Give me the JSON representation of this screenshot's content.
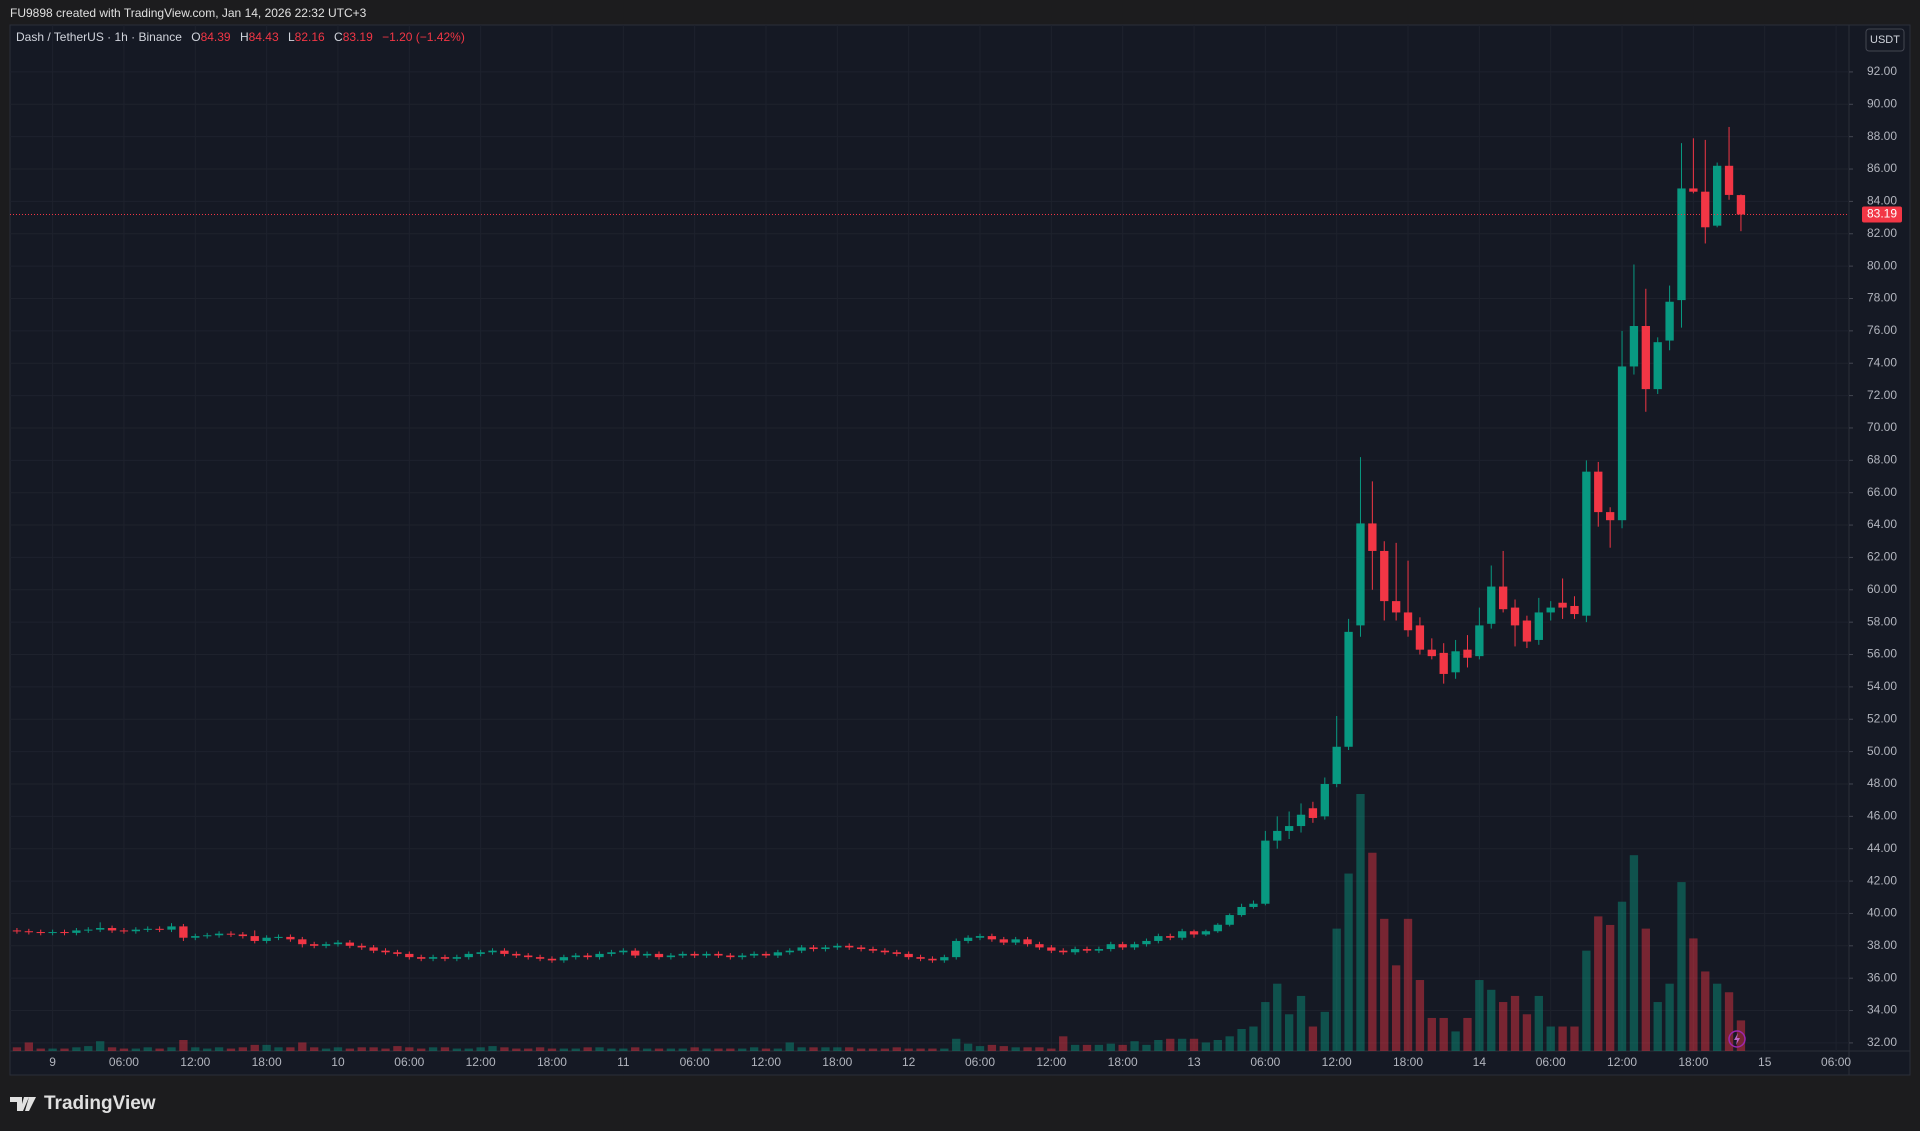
{
  "attribution": "FU9898 created with TradingView.com, Jan 14, 2026 22:32 UTC+3",
  "brand": "TradingView",
  "chart_data": {
    "type": "candlestick",
    "title": "Dash / TetherUS · 1h · Binance",
    "legend_labels": [
      "O",
      "H",
      "L",
      "C"
    ],
    "change": "−1.20 (−1.42%)",
    "currency": "USDT",
    "up_color": "#089981",
    "down_color": "#f23645",
    "grid": true,
    "ylim": [
      31.5,
      94.9
    ],
    "yticks": [
      {
        "value": 32,
        "label": "32.00"
      },
      {
        "value": 34,
        "label": "34.00"
      },
      {
        "value": 36,
        "label": "36.00"
      },
      {
        "value": 38,
        "label": "38.00"
      },
      {
        "value": 40,
        "label": "40.00"
      },
      {
        "value": 42,
        "label": "42.00"
      },
      {
        "value": 44,
        "label": "44.00"
      },
      {
        "value": 46,
        "label": "46.00"
      },
      {
        "value": 48,
        "label": "48.00"
      },
      {
        "value": 50,
        "label": "50.00"
      },
      {
        "value": 52,
        "label": "52.00"
      },
      {
        "value": 54,
        "label": "54.00"
      },
      {
        "value": 56,
        "label": "56.00"
      },
      {
        "value": 58,
        "label": "58.00"
      },
      {
        "value": 60,
        "label": "60.00"
      },
      {
        "value": 62,
        "label": "62.00"
      },
      {
        "value": 64,
        "label": "64.00"
      },
      {
        "value": 66,
        "label": "66.00"
      },
      {
        "value": 68,
        "label": "68.00"
      },
      {
        "value": 70,
        "label": "70.00"
      },
      {
        "value": 72,
        "label": "72.00"
      },
      {
        "value": 74,
        "label": "74.00"
      },
      {
        "value": 76,
        "label": "76.00"
      },
      {
        "value": 78,
        "label": "78.00"
      },
      {
        "value": 80,
        "label": "80.00"
      },
      {
        "value": 82,
        "label": "82.00"
      },
      {
        "value": 84,
        "label": "84.00"
      },
      {
        "value": 86,
        "label": "86.00"
      },
      {
        "value": 88,
        "label": "88.00"
      },
      {
        "value": 90,
        "label": "90.00"
      },
      {
        "value": 92,
        "label": "92.00"
      }
    ],
    "categories": [
      null,
      null,
      null,
      "9",
      null,
      null,
      null,
      null,
      null,
      "06:00",
      null,
      null,
      null,
      null,
      null,
      "12:00",
      null,
      null,
      null,
      null,
      null,
      "18:00",
      null,
      null,
      null,
      null,
      null,
      "10",
      null,
      null,
      null,
      null,
      null,
      "06:00",
      null,
      null,
      null,
      null,
      null,
      "12:00",
      null,
      null,
      null,
      null,
      null,
      "18:00",
      null,
      null,
      null,
      null,
      null,
      "11",
      null,
      null,
      null,
      null,
      null,
      "06:00",
      null,
      null,
      null,
      null,
      null,
      "12:00",
      null,
      null,
      null,
      null,
      null,
      "18:00",
      null,
      null,
      null,
      null,
      null,
      "12",
      null,
      null,
      null,
      null,
      null,
      "06:00",
      null,
      null,
      null,
      null,
      null,
      "12:00",
      null,
      null,
      null,
      null,
      null,
      "18:00",
      null,
      null,
      null,
      null,
      null,
      "13",
      null,
      null,
      null,
      null,
      null,
      "06:00",
      null,
      null,
      null,
      null,
      null,
      "12:00",
      null,
      null,
      null,
      null,
      null,
      "18:00",
      null,
      null,
      null,
      null,
      null,
      "14",
      null,
      null,
      null,
      null,
      null,
      "06:00",
      null,
      null,
      null,
      null,
      null,
      "12:00",
      null,
      null,
      null,
      null,
      null,
      "18:00",
      null,
      null,
      null,
      null,
      null,
      "15",
      null,
      null,
      null,
      null,
      null,
      "06:00"
    ],
    "open": [
      38.95,
      38.9,
      38.85,
      38.8,
      38.85,
      38.8,
      38.95,
      39.0,
      39.1,
      38.95,
      38.9,
      39.0,
      39.05,
      39.0,
      39.2,
      38.5,
      38.6,
      38.65,
      38.75,
      38.7,
      38.6,
      38.3,
      38.5,
      38.55,
      38.4,
      38.1,
      38.0,
      38.1,
      38.2,
      38.0,
      37.9,
      37.7,
      37.6,
      37.5,
      37.3,
      37.2,
      37.3,
      37.2,
      37.3,
      37.5,
      37.6,
      37.7,
      37.5,
      37.4,
      37.3,
      37.2,
      37.1,
      37.3,
      37.4,
      37.3,
      37.5,
      37.6,
      37.7,
      37.4,
      37.5,
      37.3,
      37.4,
      37.5,
      37.4,
      37.5,
      37.4,
      37.3,
      37.4,
      37.5,
      37.4,
      37.6,
      37.7,
      37.9,
      37.8,
      37.9,
      38.0,
      37.9,
      37.8,
      37.7,
      37.6,
      37.5,
      37.3,
      37.2,
      37.1,
      37.3,
      38.3,
      38.5,
      38.6,
      38.4,
      38.2,
      38.4,
      38.1,
      37.9,
      37.7,
      37.6,
      37.8,
      37.7,
      37.8,
      38.1,
      37.9,
      38.1,
      38.3,
      38.6,
      38.5,
      38.9,
      38.7,
      38.9,
      39.3,
      39.9,
      40.4,
      40.6,
      44.5,
      45.1,
      45.4,
      46.5,
      46.0,
      48.0,
      50.3,
      57.8,
      64.1,
      62.4,
      59.3,
      58.6,
      57.8,
      56.3,
      56.1,
      54.9,
      56.3,
      55.9,
      57.9,
      60.2,
      58.9,
      58.1,
      56.9,
      58.6,
      59.2,
      59.0,
      58.4,
      67.3,
      64.8,
      64.3,
      73.8,
      76.3,
      72.4,
      75.4,
      77.9,
      84.8,
      84.6,
      82.5,
      86.2,
      84.39,
      null,
      null,
      null,
      null,
      null,
      null,
      null,
      null
    ],
    "high": [
      39.1,
      39.05,
      39.0,
      39.0,
      39.0,
      39.1,
      39.15,
      39.45,
      39.25,
      39.1,
      39.15,
      39.2,
      39.2,
      39.4,
      39.35,
      38.75,
      38.8,
      38.9,
      38.9,
      38.85,
      38.95,
      38.65,
      38.7,
      38.7,
      38.55,
      38.25,
      38.25,
      38.35,
      38.35,
      38.15,
      38.05,
      37.85,
      37.75,
      37.65,
      37.45,
      37.45,
      37.45,
      37.45,
      37.65,
      37.75,
      37.85,
      37.85,
      37.65,
      37.55,
      37.45,
      37.35,
      37.45,
      37.55,
      37.55,
      37.65,
      37.75,
      37.85,
      37.85,
      37.65,
      37.65,
      37.55,
      37.65,
      37.65,
      37.65,
      37.65,
      37.55,
      37.55,
      37.65,
      37.65,
      37.75,
      37.85,
      38.05,
      38.05,
      38.05,
      38.15,
      38.15,
      38.05,
      37.95,
      37.85,
      37.75,
      37.65,
      37.45,
      37.35,
      37.45,
      38.45,
      38.65,
      38.75,
      38.75,
      38.55,
      38.55,
      38.55,
      38.25,
      38.05,
      37.85,
      37.95,
      37.95,
      37.95,
      38.25,
      38.25,
      38.25,
      38.45,
      38.75,
      38.75,
      39.05,
      39.0,
      39.0,
      39.4,
      40.0,
      40.6,
      40.8,
      45.1,
      46.0,
      46.3,
      46.8,
      46.9,
      48.4,
      52.2,
      58.2,
      68.2,
      66.7,
      63.0,
      62.9,
      61.8,
      58.3,
      57.0,
      56.7,
      56.9,
      57.2,
      58.9,
      61.5,
      62.4,
      59.4,
      58.4,
      59.5,
      59.3,
      60.7,
      59.6,
      68.0,
      67.9,
      65.1,
      76.0,
      80.1,
      78.6,
      75.6,
      78.8,
      87.6,
      87.9,
      87.8,
      86.4,
      88.6,
      84.43,
      null,
      null,
      null,
      null,
      null,
      null,
      null,
      null
    ],
    "low": [
      38.75,
      38.7,
      38.65,
      38.65,
      38.65,
      38.65,
      38.8,
      38.85,
      38.8,
      38.75,
      38.75,
      38.85,
      38.85,
      38.85,
      38.3,
      38.35,
      38.45,
      38.5,
      38.55,
      38.45,
      38.15,
      38.15,
      38.35,
      38.25,
      37.9,
      37.85,
      37.85,
      37.95,
      37.85,
      37.75,
      37.55,
      37.45,
      37.35,
      37.15,
      37.05,
      37.05,
      37.05,
      37.05,
      37.15,
      37.35,
      37.45,
      37.35,
      37.25,
      37.15,
      37.05,
      36.95,
      36.95,
      37.15,
      37.15,
      37.15,
      37.35,
      37.45,
      37.25,
      37.25,
      37.15,
      37.15,
      37.25,
      37.25,
      37.25,
      37.25,
      37.15,
      37.15,
      37.25,
      37.25,
      37.25,
      37.45,
      37.55,
      37.65,
      37.65,
      37.75,
      37.75,
      37.65,
      37.55,
      37.45,
      37.35,
      37.15,
      37.05,
      36.95,
      36.95,
      37.15,
      38.15,
      38.35,
      38.25,
      38.05,
      38.05,
      37.95,
      37.75,
      37.55,
      37.45,
      37.45,
      37.55,
      37.55,
      37.65,
      37.75,
      37.75,
      37.95,
      38.15,
      38.35,
      38.35,
      38.5,
      38.6,
      38.8,
      39.2,
      39.8,
      40.3,
      40.5,
      44.0,
      44.6,
      45.0,
      45.6,
      45.8,
      47.8,
      50.1,
      57.1,
      60.0,
      58.1,
      58.1,
      57.1,
      56.0,
      55.7,
      54.2,
      54.5,
      55.2,
      55.7,
      57.6,
      58.6,
      56.5,
      56.4,
      56.6,
      58.1,
      58.2,
      58.2,
      58.0,
      63.9,
      62.6,
      63.8,
      73.3,
      71.0,
      72.1,
      74.8,
      76.2,
      84.5,
      81.4,
      82.4,
      84.1,
      82.16,
      null,
      null,
      null,
      null,
      null,
      null,
      null,
      null
    ],
    "close": [
      38.9,
      38.85,
      38.8,
      38.85,
      38.8,
      38.95,
      39.0,
      39.1,
      38.95,
      38.9,
      39.0,
      39.05,
      39.0,
      39.2,
      38.5,
      38.6,
      38.65,
      38.75,
      38.7,
      38.6,
      38.3,
      38.5,
      38.55,
      38.4,
      38.1,
      38.0,
      38.1,
      38.2,
      38.0,
      37.9,
      37.7,
      37.6,
      37.5,
      37.3,
      37.2,
      37.3,
      37.2,
      37.3,
      37.5,
      37.6,
      37.7,
      37.5,
      37.4,
      37.3,
      37.2,
      37.1,
      37.3,
      37.4,
      37.3,
      37.5,
      37.6,
      37.7,
      37.4,
      37.5,
      37.3,
      37.4,
      37.5,
      37.4,
      37.5,
      37.4,
      37.3,
      37.4,
      37.5,
      37.4,
      37.6,
      37.7,
      37.9,
      37.8,
      37.9,
      38.0,
      37.9,
      37.8,
      37.7,
      37.6,
      37.5,
      37.3,
      37.2,
      37.1,
      37.3,
      38.3,
      38.5,
      38.6,
      38.4,
      38.2,
      38.4,
      38.1,
      37.9,
      37.7,
      37.6,
      37.8,
      37.7,
      37.8,
      38.1,
      37.9,
      38.1,
      38.3,
      38.6,
      38.5,
      38.9,
      38.7,
      38.9,
      39.3,
      39.9,
      40.4,
      40.6,
      44.5,
      45.1,
      45.4,
      46.1,
      45.9,
      48.0,
      50.3,
      57.4,
      64.1,
      62.4,
      59.3,
      58.6,
      57.5,
      56.3,
      55.9,
      54.8,
      56.2,
      55.8,
      57.8,
      60.2,
      58.8,
      57.8,
      56.8,
      58.6,
      58.9,
      58.9,
      58.5,
      67.3,
      64.8,
      64.3,
      73.8,
      76.3,
      72.4,
      75.3,
      77.8,
      84.8,
      84.6,
      82.4,
      86.2,
      84.4,
      83.19,
      null,
      null,
      null,
      null,
      null,
      null,
      null,
      null
    ],
    "volume": [
      3,
      7,
      2,
      2,
      2,
      3,
      4,
      8,
      3,
      2,
      2,
      3,
      2,
      3,
      9,
      3,
      2,
      3,
      2,
      3,
      5,
      5,
      3,
      3,
      7,
      3,
      2,
      3,
      2,
      3,
      3,
      2,
      4,
      3,
      2,
      3,
      3,
      2,
      2,
      3,
      4,
      3,
      2,
      2,
      3,
      2,
      2,
      2,
      3,
      3,
      2,
      2,
      3,
      2,
      2,
      2,
      2,
      3,
      2,
      2,
      2,
      2,
      3,
      2,
      2,
      7,
      3,
      3,
      3,
      3,
      3,
      2,
      2,
      2,
      3,
      2,
      2,
      2,
      2,
      10,
      6,
      4,
      5,
      4,
      3,
      3,
      3,
      2,
      12,
      5,
      5,
      5,
      6,
      5,
      8,
      5,
      9,
      10,
      10,
      10,
      7,
      9,
      12,
      18,
      20,
      40,
      55,
      30,
      45,
      20,
      32,
      100,
      145,
      210,
      162,
      108,
      70,
      108,
      58,
      27,
      27,
      16,
      27,
      58,
      50,
      40,
      45,
      30,
      45,
      20,
      20,
      20,
      82,
      110,
      103,
      122,
      160,
      100,
      40,
      55,
      138,
      92,
      65,
      55,
      48,
      25,
      null,
      null,
      null,
      null,
      null,
      null,
      null,
      null
    ]
  }
}
